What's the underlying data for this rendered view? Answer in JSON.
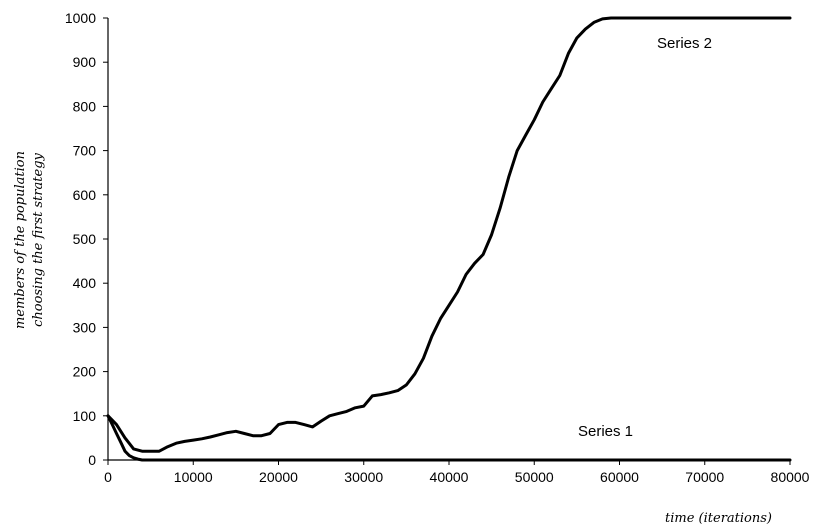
{
  "chart_data": {
    "type": "line",
    "xlabel": "time (iterations)",
    "ylabel": [
      "members of the population",
      "choosing the first strategy"
    ],
    "xlim": [
      0,
      80000
    ],
    "ylim": [
      0,
      1000
    ],
    "xticks": [
      0,
      10000,
      20000,
      30000,
      40000,
      50000,
      60000,
      70000,
      80000
    ],
    "yticks": [
      0,
      100,
      200,
      300,
      400,
      500,
      600,
      700,
      800,
      900,
      1000
    ],
    "grid": false,
    "line_color": "#000000",
    "series": [
      {
        "name": "Series 1",
        "x": [
          0,
          500,
          1000,
          1500,
          2000,
          2500,
          3000,
          3500,
          4000,
          5000,
          6000,
          8000,
          80000
        ],
        "y": [
          100,
          80,
          60,
          40,
          20,
          10,
          5,
          2,
          0,
          0,
          0,
          0,
          0
        ]
      },
      {
        "name": "Series 2",
        "x": [
          0,
          1000,
          2000,
          3000,
          4000,
          5000,
          6000,
          7000,
          8000,
          9000,
          10000,
          11000,
          12000,
          13000,
          14000,
          15000,
          16000,
          17000,
          18000,
          19000,
          20000,
          21000,
          22000,
          23000,
          24000,
          25000,
          26000,
          27000,
          28000,
          29000,
          30000,
          31000,
          32000,
          33000,
          34000,
          35000,
          36000,
          37000,
          38000,
          39000,
          40000,
          41000,
          42000,
          43000,
          44000,
          45000,
          46000,
          47000,
          48000,
          49000,
          50000,
          51000,
          52000,
          53000,
          54000,
          55000,
          56000,
          57000,
          58000,
          59000,
          60000,
          65000,
          70000,
          75000,
          80000
        ],
        "y": [
          100,
          80,
          50,
          25,
          20,
          20,
          20,
          30,
          38,
          42,
          45,
          48,
          52,
          57,
          62,
          65,
          60,
          55,
          55,
          60,
          80,
          85,
          85,
          80,
          75,
          88,
          100,
          105,
          110,
          118,
          122,
          145,
          148,
          152,
          157,
          170,
          195,
          230,
          280,
          320,
          350,
          380,
          420,
          445,
          465,
          510,
          570,
          640,
          700,
          735,
          770,
          810,
          840,
          870,
          920,
          955,
          975,
          990,
          998,
          1000,
          1000,
          1000,
          1000,
          1000,
          1000
        ]
      }
    ]
  }
}
